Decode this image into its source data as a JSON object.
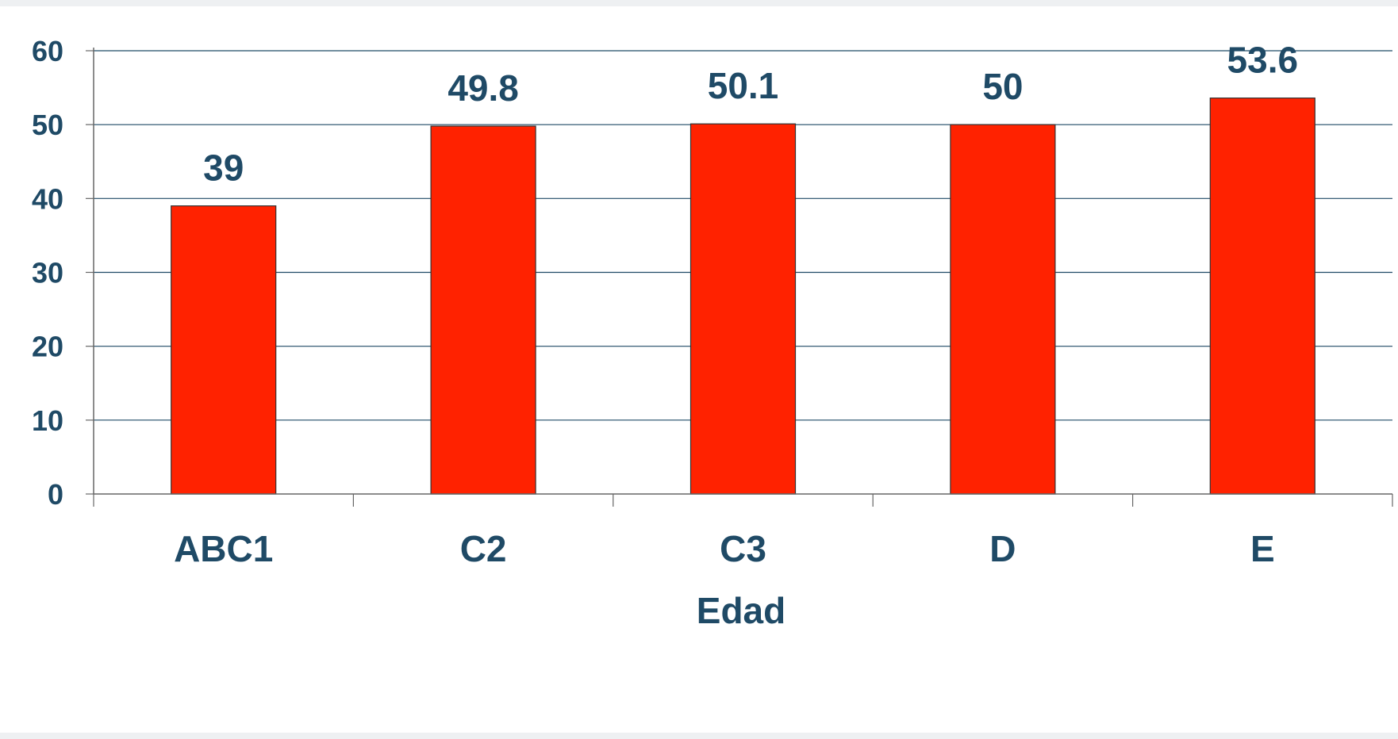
{
  "chart_data": {
    "type": "bar",
    "title": "",
    "xlabel": "Edad",
    "ylabel": "",
    "categories": [
      "ABC1",
      "C2",
      "C3",
      "D",
      "E"
    ],
    "values": [
      39,
      49.8,
      50.1,
      50,
      53.6
    ],
    "data_labels": [
      "39",
      "49.8",
      "50.1",
      "50",
      "53.6"
    ],
    "ylim": [
      0,
      60
    ],
    "yticks": [
      0,
      10,
      20,
      30,
      40,
      50,
      60
    ],
    "grid": true,
    "legend": "none",
    "colors": {
      "bar": "#ff2200",
      "bar_edge": "#333333",
      "grid": "#1f4a66",
      "text": "#1f4a66",
      "axis": "#666666"
    }
  }
}
